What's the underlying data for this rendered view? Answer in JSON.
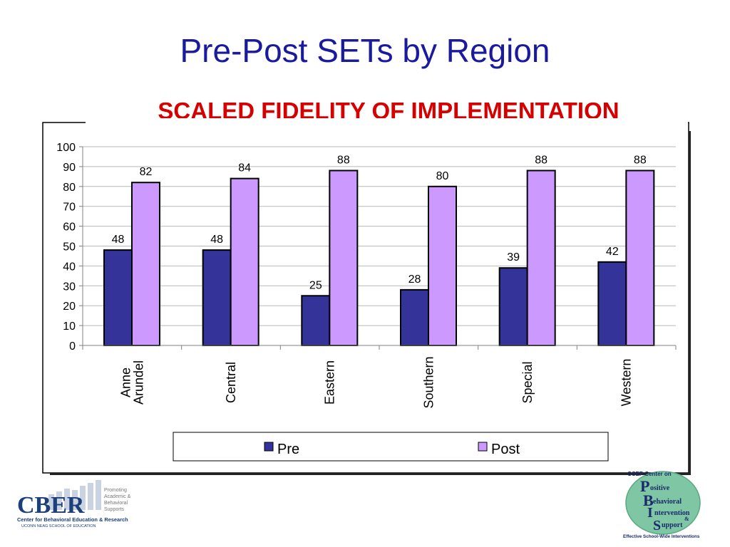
{
  "slide": {
    "title": "Pre-Post SETs by Region"
  },
  "chart_data": {
    "type": "bar",
    "title": "SCALED FIDELITY OF IMPLEMENTATION",
    "categories": [
      "Anne Arundel",
      "Central",
      "Eastern",
      "Southern",
      "Special",
      "Western"
    ],
    "series": [
      {
        "name": "Pre",
        "values": [
          48,
          48,
          25,
          28,
          39,
          42
        ],
        "color": "#33339a"
      },
      {
        "name": "Post",
        "values": [
          82,
          84,
          88,
          80,
          88,
          88
        ],
        "color": "#cc99ff"
      }
    ],
    "ylim": [
      0,
      100
    ],
    "yticks": [
      0,
      10,
      20,
      30,
      40,
      50,
      60,
      70,
      80,
      90,
      100
    ],
    "grid": true,
    "legend_position": "bottom",
    "data_labels": true
  },
  "logos": {
    "cber": {
      "mark": "CBER",
      "tagline": [
        "Promoting",
        "Academic &",
        "Behavioral",
        "Supports"
      ],
      "name": "Center for Behavioral Education & Research",
      "school": "UCONN NEAG SCHOOL OF EDUCATION"
    },
    "pbis": {
      "header": "OSEP Center on",
      "words": [
        "ositive",
        "ehavioral",
        "ntervention",
        "&",
        "upport"
      ],
      "letters": [
        "P",
        "B",
        "I",
        "S"
      ],
      "footer": "Effective School-Wide Interventions"
    }
  }
}
